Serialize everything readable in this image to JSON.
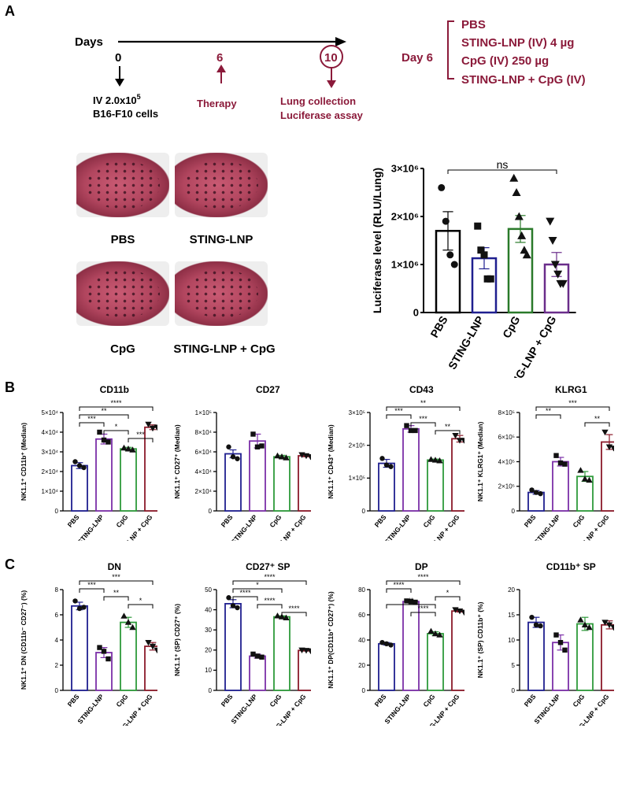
{
  "panel_a": {
    "label": "A",
    "days_label": "Days",
    "day0": "0",
    "day0_note_line1": "IV 2.0x10",
    "day0_note_sup": "5",
    "day0_note_line2": "B16-F10 cells",
    "day6": "6",
    "day6_note": "Therapy",
    "day10": "10",
    "day10_note_line1": "Lung collection",
    "day10_note_line2": "Luciferase assay",
    "treat_day": "Day 6",
    "treatments": [
      "PBS",
      "STING-LNP (IV) 4 µg",
      "CpG (IV) 250 µg",
      "STING-LNP + CpG (IV)"
    ],
    "photo_labels": [
      "PBS",
      "STING-LNP",
      "CpG",
      "STING-LNP + CpG"
    ]
  },
  "panel_b_label": "B",
  "panel_c_label": "C",
  "colors": {
    "PBS": "#1f1f8f",
    "STING": "#7b2fa8",
    "CpG": "#2e9a3a",
    "Combo": "#8b1a2a",
    "accent": "#8b1a3a",
    "luc_combo": "#6a2d8a",
    "luc_sting": "#1f1f8f",
    "luc_cpg": "#2a7a2a"
  },
  "chart_data": [
    {
      "id": "luc",
      "type": "bar",
      "title": "",
      "ylabel": "Luciferase level (RLU/Lung)",
      "categories": [
        "PBS",
        "STING-LNP",
        "CpG",
        "STING-LNP + CpG"
      ],
      "values": [
        1700000,
        1130000,
        1740000,
        1000000
      ],
      "sem": [
        400000,
        220000,
        280000,
        250000
      ],
      "ylim": [
        0,
        3000000
      ],
      "yticks": [
        "0",
        "1×10⁶",
        "2×10⁶",
        "3×10⁶"
      ],
      "points": [
        [
          2600000,
          1900000,
          1200000,
          1000000
        ],
        [
          1800000,
          1300000,
          1200000,
          700000,
          700000
        ],
        [
          2800000,
          2500000,
          2000000,
          1600000,
          1300000,
          1200000
        ],
        [
          1900000,
          1500000,
          1000000,
          800000,
          600000,
          600000
        ]
      ],
      "annotations": [
        {
          "text": "ns",
          "from": 0,
          "to": 3
        }
      ]
    },
    {
      "id": "cd11b",
      "type": "bar",
      "title": "CD11b",
      "ylabel": "NK1.1⁺ CD11b⁺ (Median)",
      "categories": [
        "PBS",
        "STING-LNP",
        "CpG",
        "STING-LNP + CpG"
      ],
      "values": [
        23000,
        36500,
        31500,
        42500
      ],
      "sem": [
        1500,
        2500,
        800,
        1200
      ],
      "ylim": [
        0,
        50000
      ],
      "yticks": [
        "0",
        "1×10⁴",
        "2×10⁴",
        "3×10⁴",
        "4×10⁴",
        "5×10⁴"
      ],
      "points": [
        [
          25000,
          23000,
          22000
        ],
        [
          40000,
          36000,
          35000
        ],
        [
          32000,
          31500,
          31000
        ],
        [
          44000,
          42000,
          42500
        ]
      ],
      "annotations": [
        {
          "text": "****",
          "from": 0,
          "to": 3
        },
        {
          "text": "**",
          "from": 0,
          "to": 2
        },
        {
          "text": "***",
          "from": 0,
          "to": 1
        },
        {
          "text": "*",
          "from": 1,
          "to": 2
        },
        {
          "text": "***",
          "from": 2,
          "to": 3
        }
      ]
    },
    {
      "id": "cd27",
      "type": "bar",
      "title": "CD27",
      "ylabel": "NK1.1⁺ CD27⁺ (Median)",
      "categories": [
        "PBS",
        "STING-LNP",
        "CpG",
        "STING-LNP + CpG"
      ],
      "values": [
        58000,
        71000,
        55000,
        56000
      ],
      "sem": [
        4000,
        7000,
        1500,
        1000
      ],
      "ylim": [
        0,
        100000
      ],
      "yticks": [
        "0",
        "2×10⁴",
        "4×10⁴",
        "6×10⁴",
        "8×10⁴",
        "1×10⁵"
      ],
      "points": [
        [
          65000,
          55000,
          53000
        ],
        [
          78000,
          65000,
          66000
        ],
        [
          56000,
          55000,
          54000
        ],
        [
          57000,
          56000,
          55000
        ]
      ],
      "annotations": []
    },
    {
      "id": "cd43",
      "type": "bar",
      "title": "CD43",
      "ylabel": "NK1.1⁺ CD43⁺ (Median)",
      "categories": [
        "PBS",
        "STING-LNP",
        "CpG",
        "STING-LNP + CpG"
      ],
      "values": [
        145000,
        250000,
        155000,
        220000
      ],
      "sem": [
        12000,
        10000,
        3000,
        10000
      ],
      "ylim": [
        0,
        300000
      ],
      "yticks": [
        "0",
        "1×10⁵",
        "2×10⁵",
        "3×10⁵"
      ],
      "points": [
        [
          160000,
          140000,
          135000
        ],
        [
          260000,
          245000,
          245000
        ],
        [
          157000,
          155000,
          153000
        ],
        [
          230000,
          215000,
          215000
        ]
      ],
      "annotations": [
        {
          "text": "**",
          "from": 0,
          "to": 3
        },
        {
          "text": "***",
          "from": 0,
          "to": 1
        },
        {
          "text": "***",
          "from": 1,
          "to": 2
        },
        {
          "text": "**",
          "from": 2,
          "to": 3
        }
      ]
    },
    {
      "id": "klrg1",
      "type": "bar",
      "title": "KLRG1",
      "ylabel": "NK1.1⁺ KLRG1⁺ (Median)",
      "categories": [
        "PBS",
        "STING-LNP",
        "CpG",
        "STING-LNP + CpG"
      ],
      "values": [
        150000,
        400000,
        280000,
        560000
      ],
      "sem": [
        15000,
        35000,
        40000,
        60000
      ],
      "ylim": [
        0,
        800000
      ],
      "yticks": [
        "0",
        "2×10⁵",
        "4×10⁵",
        "6×10⁵",
        "8×10⁵"
      ],
      "points": [
        [
          170000,
          150000,
          140000
        ],
        [
          450000,
          390000,
          380000
        ],
        [
          330000,
          260000,
          250000
        ],
        [
          640000,
          520000,
          510000
        ]
      ],
      "annotations": [
        {
          "text": "***",
          "from": 0,
          "to": 3
        },
        {
          "text": "**",
          "from": 0,
          "to": 1
        },
        {
          "text": "**",
          "from": 2,
          "to": 3
        }
      ]
    },
    {
      "id": "dn",
      "type": "bar",
      "title": "DN",
      "ylabel": "NK1.1⁺ DN (CD11b⁻ CD27⁻) (%)",
      "categories": [
        "PBS",
        "STING-LNP",
        "CpG",
        "STING-LNP + CpG"
      ],
      "values": [
        6.7,
        3.0,
        5.4,
        3.5
      ],
      "sem": [
        0.3,
        0.4,
        0.4,
        0.3
      ],
      "ylim": [
        0,
        8
      ],
      "yticks": [
        "0",
        "2",
        "4",
        "6",
        "8"
      ],
      "points": [
        [
          7.1,
          6.5,
          6.6
        ],
        [
          3.4,
          3.1,
          2.5
        ],
        [
          5.9,
          5.4,
          5.0
        ],
        [
          3.8,
          3.5,
          3.2
        ]
      ],
      "annotations": [
        {
          "text": "***",
          "from": 0,
          "to": 3
        },
        {
          "text": "***",
          "from": 0,
          "to": 1
        },
        {
          "text": "**",
          "from": 1,
          "to": 2
        },
        {
          "text": "*",
          "from": 2,
          "to": 3
        }
      ]
    },
    {
      "id": "cd27sp",
      "type": "bar",
      "title": "CD27⁺ SP",
      "ylabel": "NK1.1⁺ (SP) CD27⁺ (%)",
      "categories": [
        "PBS",
        "STING-LNP",
        "CpG",
        "STING-LNP + CpG"
      ],
      "values": [
        43,
        17,
        36.5,
        19.8
      ],
      "sem": [
        2,
        1,
        0.5,
        0.3
      ],
      "ylim": [
        0,
        50
      ],
      "yticks": [
        "0",
        "10",
        "20",
        "30",
        "40",
        "50"
      ],
      "points": [
        [
          46,
          42,
          41
        ],
        [
          18,
          17,
          16.5
        ],
        [
          37,
          36.5,
          36
        ],
        [
          20,
          19.8,
          19.6
        ]
      ],
      "annotations": [
        {
          "text": "****",
          "from": 0,
          "to": 3
        },
        {
          "text": "*",
          "from": 0,
          "to": 2
        },
        {
          "text": "****",
          "from": 0,
          "to": 1
        },
        {
          "text": "****",
          "from": 1,
          "to": 2
        },
        {
          "text": "****",
          "from": 2,
          "to": 3
        }
      ]
    },
    {
      "id": "dp",
      "type": "bar",
      "title": "DP",
      "ylabel": "NK1.1⁺ DP(CD11b⁺ CD27⁺) (%)",
      "categories": [
        "PBS",
        "STING-LNP",
        "CpG",
        "STING-LNP + CpG"
      ],
      "values": [
        37,
        70.5,
        45,
        63
      ],
      "sem": [
        1,
        0.5,
        1.5,
        0.8
      ],
      "ylim": [
        0,
        80
      ],
      "yticks": [
        "0",
        "20",
        "40",
        "60",
        "80"
      ],
      "points": [
        [
          38,
          37,
          36
        ],
        [
          71,
          70.5,
          70
        ],
        [
          47,
          45,
          44
        ],
        [
          64,
          63,
          62
        ]
      ],
      "annotations": [
        {
          "text": "****",
          "from": 0,
          "to": 3
        },
        {
          "text": "****",
          "from": 0,
          "to": 1
        },
        {
          "text": "*",
          "from": 2,
          "to": 3
        },
        {
          "text": "**",
          "from": 0,
          "to": 2
        },
        {
          "text": "****",
          "from": 1,
          "to": 2
        }
      ]
    },
    {
      "id": "cd11bsp",
      "type": "bar",
      "title": "CD11b⁺ SP",
      "ylabel": "NK1.1⁺ (SP) CD11b⁺ (%)",
      "categories": [
        "PBS",
        "STING-LNP",
        "CpG",
        "STING-LNP + CpG"
      ],
      "values": [
        13.5,
        9.5,
        13.2,
        13.0
      ],
      "sem": [
        1,
        1.5,
        1.3,
        0.8
      ],
      "ylim": [
        0,
        20
      ],
      "yticks": [
        "0",
        "5",
        "10",
        "15",
        "20"
      ],
      "points": [
        [
          14.5,
          13,
          12.8
        ],
        [
          11,
          9.5,
          8
        ],
        [
          14,
          13,
          12.5
        ],
        [
          13.5,
          13,
          12.5
        ]
      ],
      "annotations": []
    }
  ]
}
